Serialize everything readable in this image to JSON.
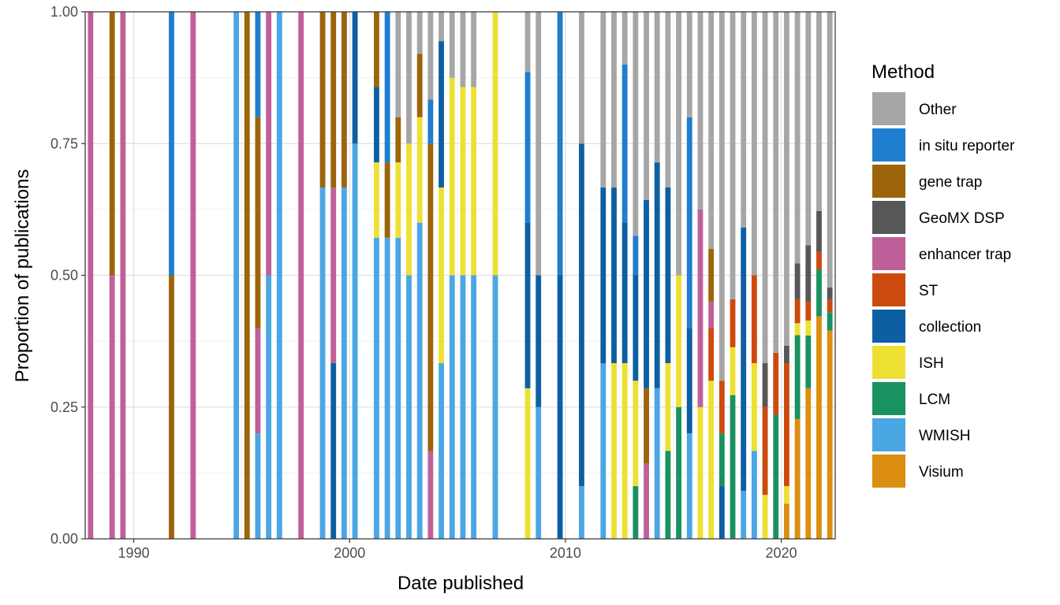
{
  "chart_data": {
    "type": "bar",
    "stacked": true,
    "bar_unit": "quarter",
    "xlabel": "Date published",
    "ylabel": "Proportion of publications",
    "xlim": [
      1987.75,
      2022.5
    ],
    "ylim": [
      0,
      1
    ],
    "x_ticks": [
      1990,
      2000,
      2010,
      2020
    ],
    "y_ticks": [
      "0.00",
      "0.25",
      "0.50",
      "0.75",
      "1.00"
    ],
    "grid": true,
    "legend_position": "right",
    "legend_title": "Method",
    "series": [
      {
        "name": "Visium",
        "color": "#DB8E10"
      },
      {
        "name": "WMISH",
        "color": "#4BA6E4"
      },
      {
        "name": "LCM",
        "color": "#1A9161"
      },
      {
        "name": "ISH",
        "color": "#EEE033"
      },
      {
        "name": "collection",
        "color": "#0D5FA3"
      },
      {
        "name": "ST",
        "color": "#CC4A0D"
      },
      {
        "name": "enhancer trap",
        "color": "#C0609A"
      },
      {
        "name": "GeoMX DSP",
        "color": "#575757"
      },
      {
        "name": "gene trap",
        "color": "#9D6409"
      },
      {
        "name": "in situ reporter",
        "color": "#1F7ECF"
      },
      {
        "name": "Other",
        "color": "#A6A6A6"
      }
    ],
    "legend_order": [
      "Other",
      "in situ reporter",
      "gene trap",
      "GeoMX DSP",
      "enhancer trap",
      "ST",
      "collection",
      "ISH",
      "LCM",
      "WMISH",
      "Visium"
    ],
    "bars": [
      {
        "x": 1988.0,
        "segments": [
          [
            "enhancer trap",
            1.0
          ]
        ]
      },
      {
        "x": 1989.0,
        "segments": [
          [
            "enhancer trap",
            0.5
          ],
          [
            "gene trap",
            0.5
          ]
        ]
      },
      {
        "x": 1989.5,
        "segments": [
          [
            "enhancer trap",
            1.0
          ]
        ]
      },
      {
        "x": 1991.75,
        "segments": [
          [
            "gene trap",
            0.5
          ],
          [
            "in situ reporter",
            0.5
          ]
        ]
      },
      {
        "x": 1992.75,
        "segments": [
          [
            "enhancer trap",
            1.0
          ]
        ]
      },
      {
        "x": 1994.75,
        "segments": [
          [
            "WMISH",
            1.0
          ]
        ]
      },
      {
        "x": 1995.25,
        "segments": [
          [
            "gene trap",
            1.0
          ]
        ]
      },
      {
        "x": 1995.75,
        "segments": [
          [
            "WMISH",
            0.2
          ],
          [
            "enhancer trap",
            0.2
          ],
          [
            "gene trap",
            0.4
          ],
          [
            "in situ reporter",
            0.2
          ]
        ]
      },
      {
        "x": 1996.25,
        "segments": [
          [
            "WMISH",
            0.5
          ],
          [
            "enhancer trap",
            0.5
          ]
        ]
      },
      {
        "x": 1996.75,
        "segments": [
          [
            "WMISH",
            1.0
          ]
        ]
      },
      {
        "x": 1997.75,
        "segments": [
          [
            "enhancer trap",
            1.0
          ]
        ]
      },
      {
        "x": 1998.75,
        "segments": [
          [
            "WMISH",
            0.6667
          ],
          [
            "gene trap",
            0.3333
          ]
        ]
      },
      {
        "x": 1999.25,
        "segments": [
          [
            "collection",
            0.3333
          ],
          [
            "enhancer trap",
            0.3333
          ],
          [
            "gene trap",
            0.3334
          ]
        ]
      },
      {
        "x": 1999.75,
        "segments": [
          [
            "WMISH",
            0.6667
          ],
          [
            "gene trap",
            0.3333
          ]
        ]
      },
      {
        "x": 2000.25,
        "segments": [
          [
            "WMISH",
            0.75
          ],
          [
            "collection",
            0.25
          ]
        ]
      },
      {
        "x": 2001.25,
        "segments": [
          [
            "WMISH",
            0.5714
          ],
          [
            "ISH",
            0.1429
          ],
          [
            "collection",
            0.1429
          ],
          [
            "gene trap",
            0.1428
          ]
        ]
      },
      {
        "x": 2001.75,
        "segments": [
          [
            "WMISH",
            0.5714
          ],
          [
            "gene trap",
            0.1429
          ],
          [
            "in situ reporter",
            0.2857
          ]
        ]
      },
      {
        "x": 2002.25,
        "segments": [
          [
            "WMISH",
            0.5714
          ],
          [
            "ISH",
            0.1429
          ],
          [
            "gene trap",
            0.0857
          ],
          [
            "Other",
            0.2
          ]
        ]
      },
      {
        "x": 2002.75,
        "segments": [
          [
            "WMISH",
            0.5
          ],
          [
            "ISH",
            0.25
          ],
          [
            "Other",
            0.25
          ]
        ]
      },
      {
        "x": 2003.25,
        "segments": [
          [
            "WMISH",
            0.6
          ],
          [
            "ISH",
            0.2
          ],
          [
            "gene trap",
            0.12
          ],
          [
            "Other",
            0.08
          ]
        ]
      },
      {
        "x": 2003.75,
        "segments": [
          [
            "enhancer trap",
            0.1667
          ],
          [
            "gene trap",
            0.5833
          ],
          [
            "in situ reporter",
            0.0833
          ],
          [
            "Other",
            0.1667
          ]
        ]
      },
      {
        "x": 2004.25,
        "segments": [
          [
            "WMISH",
            0.3333
          ],
          [
            "ISH",
            0.3333
          ],
          [
            "collection",
            0.2778
          ],
          [
            "Other",
            0.0556
          ]
        ]
      },
      {
        "x": 2004.75,
        "segments": [
          [
            "WMISH",
            0.5
          ],
          [
            "ISH",
            0.375
          ],
          [
            "Other",
            0.125
          ]
        ]
      },
      {
        "x": 2005.25,
        "segments": [
          [
            "WMISH",
            0.5
          ],
          [
            "ISH",
            0.3571
          ],
          [
            "gene trap",
            0.0
          ],
          [
            "Other",
            0.1429
          ]
        ]
      },
      {
        "x": 2005.75,
        "segments": [
          [
            "WMISH",
            0.5
          ],
          [
            "ISH",
            0.3571
          ],
          [
            "gene trap",
            0.0
          ],
          [
            "Other",
            0.1429
          ]
        ]
      },
      {
        "x": 2006.75,
        "segments": [
          [
            "WMISH",
            0.5
          ],
          [
            "ISH",
            0.5
          ]
        ]
      },
      {
        "x": 2008.25,
        "segments": [
          [
            "WMISH",
            0.0
          ],
          [
            "ISH",
            0.2857
          ],
          [
            "collection",
            0.3143
          ],
          [
            "in situ reporter",
            0.2857
          ],
          [
            "Other",
            0.1143
          ]
        ]
      },
      {
        "x": 2008.75,
        "segments": [
          [
            "WMISH",
            0.25
          ],
          [
            "collection",
            0.25
          ],
          [
            "Other",
            0.5
          ]
        ]
      },
      {
        "x": 2009.75,
        "segments": [
          [
            "collection",
            0.5
          ],
          [
            "in situ reporter",
            0.5
          ]
        ]
      },
      {
        "x": 2010.75,
        "segments": [
          [
            "WMISH",
            0.1
          ],
          [
            "ISH",
            0.0
          ],
          [
            "collection",
            0.65
          ],
          [
            "Other",
            0.25
          ]
        ]
      },
      {
        "x": 2011.75,
        "segments": [
          [
            "WMISH",
            0.3333
          ],
          [
            "collection",
            0.3333
          ],
          [
            "Other",
            0.3334
          ]
        ]
      },
      {
        "x": 2012.25,
        "segments": [
          [
            "ISH",
            0.3333
          ],
          [
            "collection",
            0.3333
          ],
          [
            "Other",
            0.3334
          ]
        ]
      },
      {
        "x": 2012.75,
        "segments": [
          [
            "ISH",
            0.3333
          ],
          [
            "collection",
            0.2667
          ],
          [
            "in situ reporter",
            0.3
          ],
          [
            "Other",
            0.1
          ]
        ]
      },
      {
        "x": 2013.25,
        "segments": [
          [
            "LCM",
            0.1
          ],
          [
            "ISH",
            0.2
          ],
          [
            "collection",
            0.2
          ],
          [
            "in situ reporter",
            0.075
          ],
          [
            "Other",
            0.425
          ]
        ]
      },
      {
        "x": 2013.75,
        "segments": [
          [
            "enhancer trap",
            0.1429
          ],
          [
            "gene trap",
            0.1429
          ],
          [
            "collection",
            0.3571
          ],
          [
            "Other",
            0.3571
          ]
        ]
      },
      {
        "x": 2014.25,
        "segments": [
          [
            "WMISH",
            0.2857
          ],
          [
            "collection",
            0.4286
          ],
          [
            "Other",
            0.2857
          ]
        ]
      },
      {
        "x": 2014.75,
        "segments": [
          [
            "LCM",
            0.1667
          ],
          [
            "ISH",
            0.1667
          ],
          [
            "collection",
            0.3333
          ],
          [
            "Other",
            0.3333
          ]
        ]
      },
      {
        "x": 2015.25,
        "segments": [
          [
            "LCM",
            0.25
          ],
          [
            "ISH",
            0.25
          ],
          [
            "collection",
            0.0
          ],
          [
            "Other",
            0.5
          ]
        ]
      },
      {
        "x": 2015.75,
        "segments": [
          [
            "WMISH",
            0.2
          ],
          [
            "LCM",
            0.0
          ],
          [
            "collection",
            0.2
          ],
          [
            "in situ reporter",
            0.4
          ],
          [
            "Other",
            0.2
          ]
        ]
      },
      {
        "x": 2016.25,
        "segments": [
          [
            "ISH",
            0.25
          ],
          [
            "collection",
            0.0
          ],
          [
            "enhancer trap",
            0.375
          ],
          [
            "Other",
            0.375
          ]
        ]
      },
      {
        "x": 2016.75,
        "segments": [
          [
            "LCM",
            0.0
          ],
          [
            "ISH",
            0.3
          ],
          [
            "ST",
            0.1
          ],
          [
            "enhancer trap",
            0.05
          ],
          [
            "gene trap",
            0.1
          ],
          [
            "Other",
            0.45
          ]
        ]
      },
      {
        "x": 2017.25,
        "segments": [
          [
            "collection",
            0.1
          ],
          [
            "LCM",
            0.1
          ],
          [
            "ST",
            0.1
          ],
          [
            "enhancer trap",
            0.0
          ],
          [
            "Other",
            0.7
          ]
        ]
      },
      {
        "x": 2017.75,
        "segments": [
          [
            "ISH",
            0.0
          ],
          [
            "LCM",
            0.2727
          ],
          [
            "ISH",
            0.0909
          ],
          [
            "ST",
            0.0909
          ],
          [
            "Other",
            0.5455
          ]
        ]
      },
      {
        "x": 2018.25,
        "segments": [
          [
            "WMISH",
            0.0909
          ],
          [
            "LCM",
            0.0
          ],
          [
            "ISH",
            0.0
          ],
          [
            "collection",
            0.5
          ],
          [
            "Other",
            0.4091
          ]
        ]
      },
      {
        "x": 2018.75,
        "segments": [
          [
            "WMISH",
            0.1667
          ],
          [
            "ISH",
            0.1667
          ],
          [
            "ST",
            0.1667
          ],
          [
            "Other",
            0.5
          ]
        ]
      },
      {
        "x": 2019.25,
        "segments": [
          [
            "ISH",
            0.0833
          ],
          [
            "ST",
            0.1667
          ],
          [
            "GeoMX DSP",
            0.0833
          ],
          [
            "Other",
            0.6667
          ]
        ]
      },
      {
        "x": 2019.75,
        "segments": [
          [
            "LCM",
            0.2353
          ],
          [
            "ST",
            0.1176
          ],
          [
            "Other",
            0.6471
          ]
        ]
      },
      {
        "x": 2020.25,
        "segments": [
          [
            "Visium",
            0.0667
          ],
          [
            "ISH",
            0.0333
          ],
          [
            "ST",
            0.2333
          ],
          [
            "GeoMX DSP",
            0.0333
          ],
          [
            "Other",
            0.6334
          ]
        ]
      },
      {
        "x": 2020.75,
        "segments": [
          [
            "Visium",
            0.2273
          ],
          [
            "LCM",
            0.1591
          ],
          [
            "ISH",
            0.0227
          ],
          [
            "ST",
            0.0455
          ],
          [
            "GeoMX DSP",
            0.0682
          ],
          [
            "Other",
            0.4772
          ]
        ]
      },
      {
        "x": 2021.25,
        "segments": [
          [
            "Visium",
            0.2857
          ],
          [
            "LCM",
            0.1
          ],
          [
            "ISH",
            0.0286
          ],
          [
            "ST",
            0.0357
          ],
          [
            "GeoMX DSP",
            0.1071
          ],
          [
            "Other",
            0.4429
          ]
        ]
      },
      {
        "x": 2021.75,
        "segments": [
          [
            "Visium",
            0.4222
          ],
          [
            "LCM",
            0.0889
          ],
          [
            "ST",
            0.0333
          ],
          [
            "GeoMX DSP",
            0.0778
          ],
          [
            "Other",
            0.3778
          ]
        ]
      },
      {
        "x": 2022.25,
        "segments": [
          [
            "Visium",
            0.3953
          ],
          [
            "LCM",
            0.0349
          ],
          [
            "ST",
            0.0233
          ],
          [
            "GeoMX DSP",
            0.0233
          ],
          [
            "Other",
            0.5232
          ]
        ]
      }
    ]
  }
}
